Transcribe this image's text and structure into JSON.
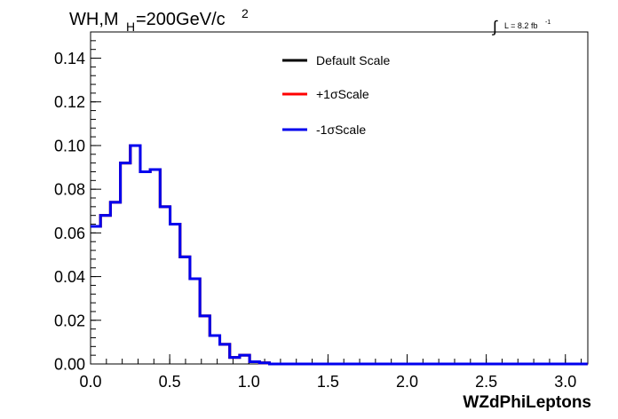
{
  "chart_data": {
    "type": "line",
    "title_parts": {
      "main": "WH,M",
      "sub": "H",
      "rest": "=200GeV/c",
      "sup": "2"
    },
    "lumi_parts": {
      "integral": "∫",
      "text": "L = 8.2 fb",
      "sup": "-1"
    },
    "xlabel": "WZdPhiLeptons",
    "ylabel": "",
    "xlim": [
      0,
      3.1416
    ],
    "ylim": [
      0,
      0.152
    ],
    "x_ticks": [
      0.0,
      0.5,
      1.0,
      1.5,
      2.0,
      2.5,
      3.0
    ],
    "x_tick_labels": [
      "0.0",
      "0.5",
      "1.0",
      "1.5",
      "2.0",
      "2.5",
      "3.0"
    ],
    "y_ticks": [
      0.0,
      0.02,
      0.04,
      0.06,
      0.08,
      0.1,
      0.12,
      0.14
    ],
    "y_tick_labels": [
      "0.00",
      "0.02",
      "0.04",
      "0.06",
      "0.08",
      "0.10",
      "0.12",
      "0.14"
    ],
    "grid": false,
    "legend_position": "top-center",
    "bin_width": 0.0628,
    "series": [
      {
        "name": "Default Scale",
        "color": "#000000",
        "values": [
          0.063,
          0.068,
          0.074,
          0.092,
          0.1,
          0.088,
          0.089,
          0.072,
          0.064,
          0.049,
          0.039,
          0.022,
          0.013,
          0.009,
          0.003,
          0.004,
          0.001,
          0.0005,
          0,
          0,
          0,
          0,
          0,
          0,
          0,
          0,
          0,
          0,
          0,
          0,
          0,
          0,
          0,
          0,
          0,
          0,
          0,
          0,
          0,
          0,
          0,
          0,
          0,
          0,
          0,
          0,
          0,
          0,
          0,
          0
        ]
      },
      {
        "name": "+1σScale",
        "color": "#ff0000",
        "values": [
          0.063,
          0.068,
          0.074,
          0.092,
          0.1,
          0.088,
          0.089,
          0.072,
          0.064,
          0.049,
          0.039,
          0.022,
          0.013,
          0.009,
          0.003,
          0.004,
          0.001,
          0.0005,
          0,
          0,
          0,
          0,
          0,
          0,
          0,
          0,
          0,
          0,
          0,
          0,
          0,
          0,
          0,
          0,
          0,
          0,
          0,
          0,
          0,
          0,
          0,
          0,
          0,
          0,
          0,
          0,
          0,
          0,
          0,
          0
        ]
      },
      {
        "name": "-1σScale",
        "color": "#0000ee",
        "values": [
          0.063,
          0.068,
          0.074,
          0.092,
          0.1,
          0.088,
          0.089,
          0.072,
          0.064,
          0.049,
          0.039,
          0.022,
          0.013,
          0.009,
          0.003,
          0.004,
          0.001,
          0.0005,
          0,
          0,
          0,
          0,
          0,
          0,
          0,
          0,
          0,
          0,
          0,
          0,
          0,
          0,
          0,
          0,
          0,
          0,
          0,
          0,
          0,
          0,
          0,
          0,
          0,
          0,
          0,
          0,
          0,
          0,
          0,
          0
        ]
      }
    ]
  }
}
